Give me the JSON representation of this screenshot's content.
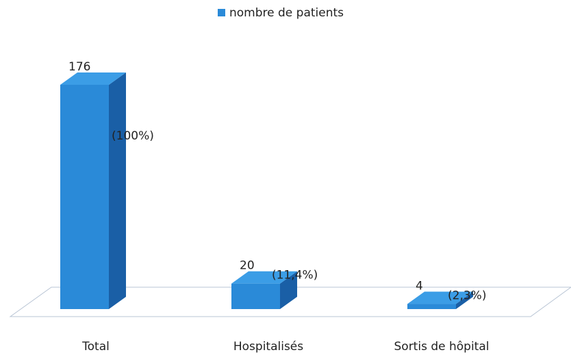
{
  "chart_data": {
    "type": "bar3d",
    "categories": [
      "Total",
      "Hospitalisés",
      "Sortis de hôpital"
    ],
    "series": [
      {
        "name": "nombre de patients",
        "color": "#2a8ad8",
        "values": [
          176,
          20,
          4
        ]
      }
    ],
    "percent_labels": [
      "(100%)",
      "(11,4%)",
      "(2,3%)"
    ],
    "legend": "top"
  }
}
